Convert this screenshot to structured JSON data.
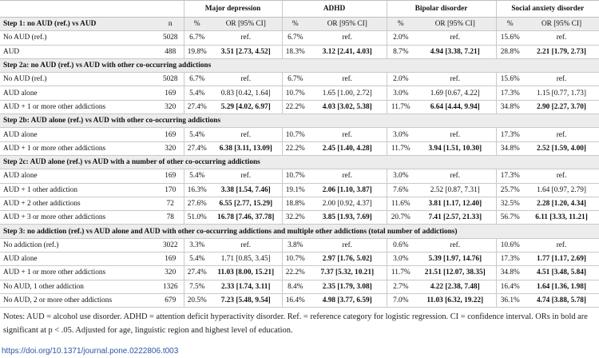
{
  "header": {
    "row1": [
      "",
      "",
      "Major depression",
      "",
      "ADHD",
      "",
      "Bipolar disorder",
      "",
      "Social anxiety disorder"
    ],
    "row2": [
      "Step 1: no AUD (ref.) vs AUD",
      "n",
      "%",
      "OR [95% CI]",
      "%",
      "OR [95% CI]",
      "%",
      "OR [95% CI]",
      "%",
      "OR [95% CI]"
    ]
  },
  "rows": [
    {
      "type": "data",
      "cells": [
        "No AUD (ref.)",
        "5028",
        "6.7%",
        "ref.",
        "6.7%",
        "ref.",
        "2.0%",
        "ref.",
        "15.6%",
        "ref."
      ],
      "bold": []
    },
    {
      "type": "data",
      "cells": [
        "AUD",
        "488",
        "19.8%",
        "3.51 [2.73, 4.52]",
        "18.3%",
        "3.12 [2.41, 4.03]",
        "8.7%",
        "4.94 [3.38, 7.21]",
        "28.8%",
        "2.21 [1.79, 2.73]"
      ],
      "bold": [
        3,
        5,
        7,
        9
      ]
    },
    {
      "type": "section",
      "label": "Step 2a: no AUD (ref.) vs AUD with other co-occurring addictions"
    },
    {
      "type": "data",
      "cells": [
        "No AUD (ref.)",
        "5028",
        "6.7%",
        "ref.",
        "6.7%",
        "ref.",
        "2.0%",
        "ref.",
        "15.6%",
        "ref."
      ],
      "bold": []
    },
    {
      "type": "data",
      "cells": [
        "AUD alone",
        "169",
        "5.4%",
        "0.83 [0.42, 1.64]",
        "10.7%",
        "1.65 [1.00, 2.72]",
        "3.0%",
        "1.69 [0.67, 4.22]",
        "17.3%",
        "1.15 [0.77, 1.73]"
      ],
      "bold": []
    },
    {
      "type": "data",
      "cells": [
        "AUD + 1 or more other addictions",
        "320",
        "27.4%",
        "5.29 [4.02, 6.97]",
        "22.2%",
        "4.03 [3.02, 5.38]",
        "11.7%",
        "6.64 [4.44, 9.94]",
        "34.8%",
        "2.90 [2.27, 3.70]"
      ],
      "bold": [
        3,
        5,
        7,
        9
      ]
    },
    {
      "type": "section",
      "label": "Step 2b: AUD alone (ref.) vs AUD with other co-occurring addictions"
    },
    {
      "type": "data",
      "cells": [
        "AUD alone",
        "169",
        "5.4%",
        "ref.",
        "10.7%",
        "ref.",
        "3.0%",
        "ref.",
        "17.3%",
        "ref."
      ],
      "bold": []
    },
    {
      "type": "data",
      "cells": [
        "AUD + 1 or more other addictions",
        "320",
        "27.4%",
        "6.38 [3.11, 13.09]",
        "22.2%",
        "2.45 [1.40, 4.28]",
        "11.7%",
        "3.94 [1.51, 10.30]",
        "34.8%",
        "2.52 [1.59, 4.00]"
      ],
      "bold": [
        3,
        5,
        7,
        9
      ]
    },
    {
      "type": "section",
      "label": "Step 2c: AUD alone (ref.) vs AUD with a number of other co-occurring addictions"
    },
    {
      "type": "data",
      "cells": [
        "AUD alone",
        "169",
        "5.4%",
        "ref.",
        "10.7%",
        "ref.",
        "3.0%",
        "ref.",
        "17.3%",
        "ref."
      ],
      "bold": []
    },
    {
      "type": "data",
      "cells": [
        "AUD + 1 other addiction",
        "170",
        "16.3%",
        "3.38 [1.54, 7.46]",
        "19.1%",
        "2.06 [1.10, 3.87]",
        "7.6%",
        "2.52 [0.87, 7.31]",
        "25.7%",
        "1.64 [0.97, 2.79]"
      ],
      "bold": [
        3,
        5
      ]
    },
    {
      "type": "data",
      "cells": [
        "AUD + 2 other addictions",
        "72",
        "27.6%",
        "6.55 [2.77, 15.29]",
        "18.8%",
        "2.00 [0.92, 4.37]",
        "11.6%",
        "3.81 [1.17, 12.40]",
        "32.5%",
        "2.28 [1.20, 4.34]"
      ],
      "bold": [
        3,
        7,
        9
      ]
    },
    {
      "type": "data",
      "cells": [
        "AUD + 3 or more other addictions",
        "78",
        "51.0%",
        "16.78 [7.46, 37.78]",
        "32.2%",
        "3.85 [1.93, 7.69]",
        "20.7%",
        "7.41 [2.57, 21.33]",
        "56.7%",
        "6.11 [3.33, 11.21]"
      ],
      "bold": [
        3,
        5,
        7,
        9
      ]
    },
    {
      "type": "section",
      "label": "Step 3: no addiction (ref.) vs AUD alone and AUD with other co-occurring addictions and multiple other addictions (total number of addictions)"
    },
    {
      "type": "data",
      "cells": [
        "No addiction (ref.)",
        "3022",
        "3.3%",
        "ref.",
        "3.8%",
        "ref.",
        "0.6%",
        "ref.",
        "10.6%",
        "ref."
      ],
      "bold": []
    },
    {
      "type": "data",
      "cells": [
        "AUD alone",
        "169",
        "5.4%",
        "1.71 [0.85, 3.45]",
        "10.7%",
        "2.97 [1.76, 5.02]",
        "3.0%",
        "5.39 [1.97, 14.76]",
        "17.3%",
        "1.77 [1.17, 2.69]"
      ],
      "bold": [
        5,
        7,
        9
      ]
    },
    {
      "type": "data",
      "cells": [
        "AUD + 1 or more other addictions",
        "320",
        "27.4%",
        "11.03 [8.00, 15.21]",
        "22.2%",
        "7.37 [5.32, 10.21]",
        "11.7%",
        "21.51 [12.07, 38.35]",
        "34.8%",
        "4.51 [3.48, 5.84]"
      ],
      "bold": [
        3,
        5,
        7,
        9
      ]
    },
    {
      "type": "data",
      "cells": [
        "No AUD, 1 other addiction",
        "1326",
        "7.5%",
        "2.33 [1.74, 3.11]",
        "8.4%",
        "2.35 [1.79, 3.08]",
        "2.7%",
        "4.22 [2.38, 7.48]",
        "16.4%",
        "1.64 [1.36, 1.98]"
      ],
      "bold": [
        3,
        5,
        7,
        9
      ]
    },
    {
      "type": "data",
      "cells": [
        "No AUD, 2 or more other addictions",
        "679",
        "20.5%",
        "7.23 [5.48, 9.54]",
        "16.4%",
        "4.98 [3.77, 6.59]",
        "7.0%",
        "11.03 [6.32, 19.22]",
        "36.1%",
        "4.74 [3.88, 5.78]"
      ],
      "bold": [
        3,
        5,
        7,
        9
      ]
    }
  ],
  "notes": "Notes: AUD = alcohol use disorder. ADHD = attention deficit hyperactivity disorder. Ref. = reference category for logistic regression. CI = confidence interval. ORs in bold are significant at p < .05. Adjusted for age, linguistic region and highest level of education.",
  "doi": "https://doi.org/10.1371/journal.pone.0222806.t003"
}
